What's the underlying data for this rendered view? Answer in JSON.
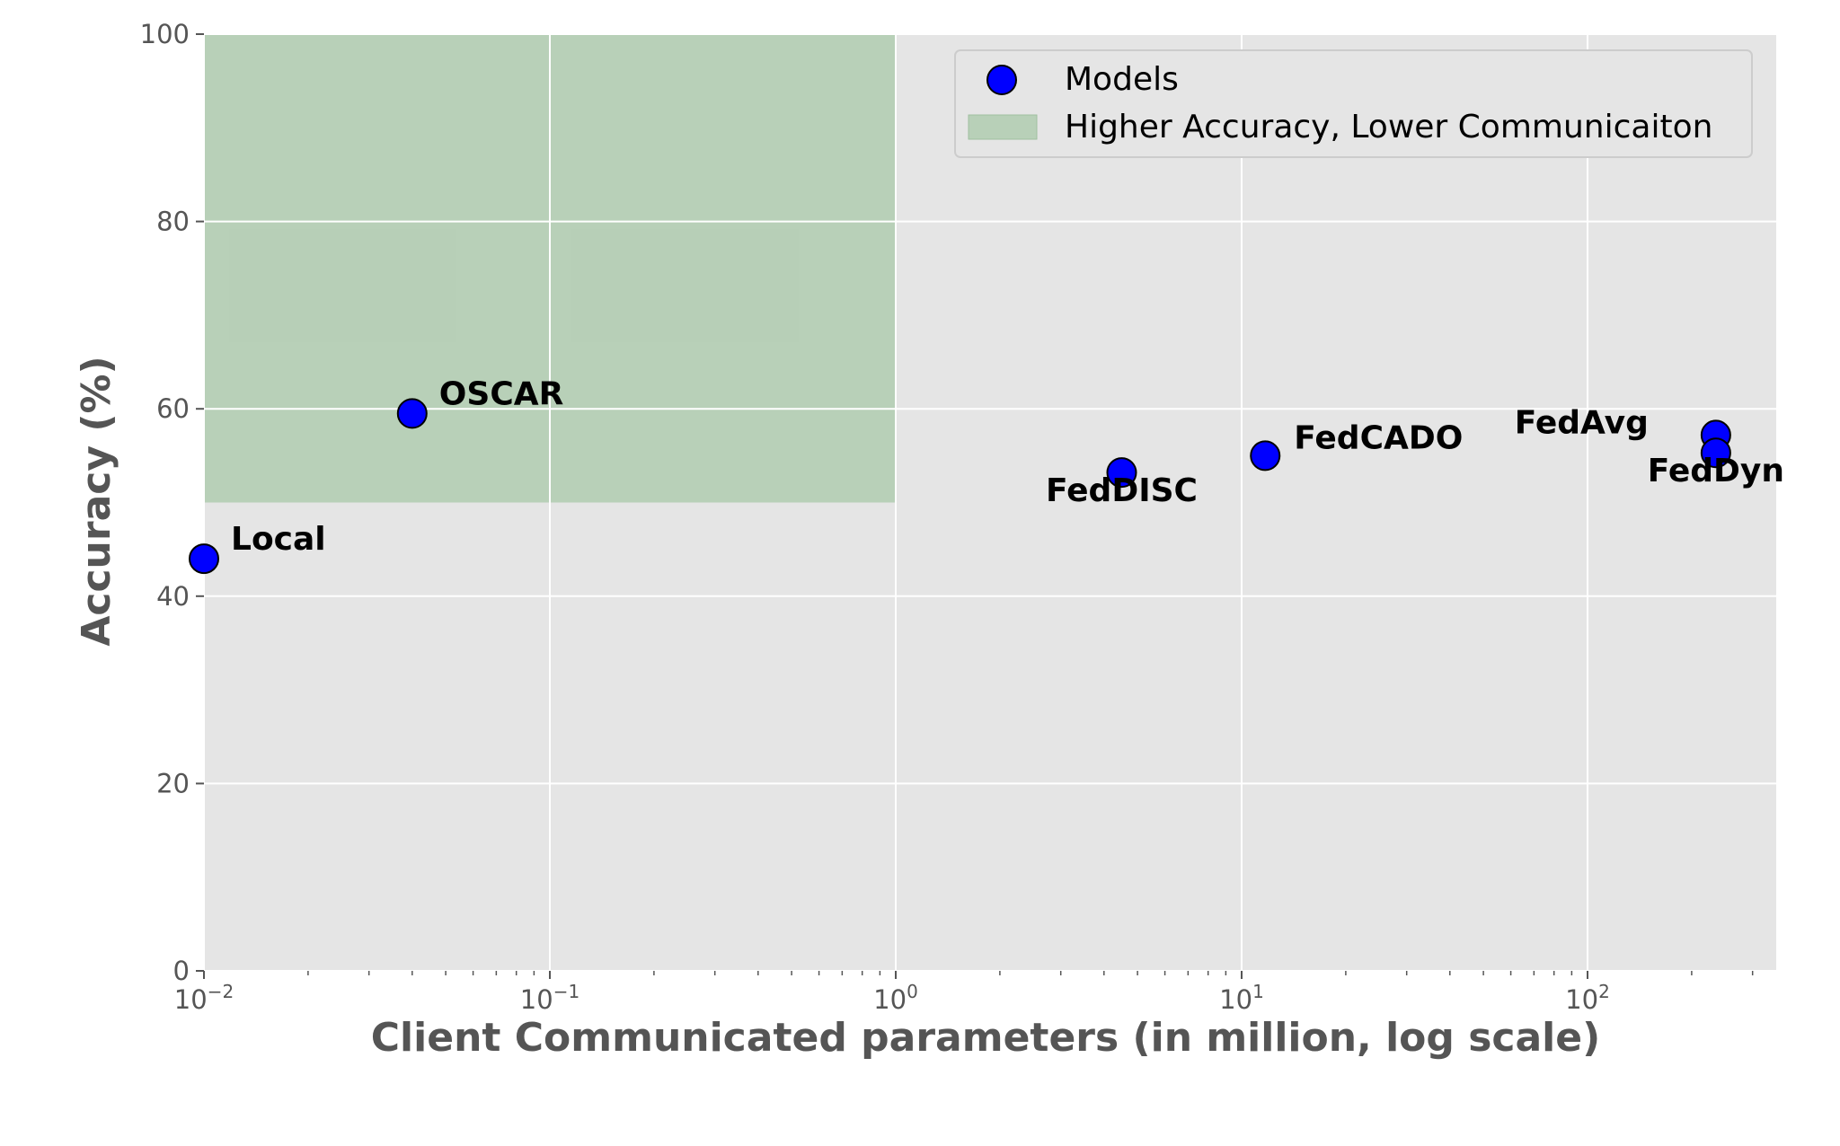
{
  "chart_data": {
    "type": "scatter",
    "xlabel": "Client Communicated parameters (in million, log scale)",
    "ylabel": "Accuracy (%)",
    "x_scale": "log",
    "xlim": [
      0.01,
      350
    ],
    "ylim": [
      0,
      100
    ],
    "x_ticks": [
      {
        "base": "10",
        "exp": "−2",
        "value": 0.01
      },
      {
        "base": "10",
        "exp": "−1",
        "value": 0.1
      },
      {
        "base": "10",
        "exp": "0",
        "value": 1
      },
      {
        "base": "10",
        "exp": "1",
        "value": 10
      },
      {
        "base": "10",
        "exp": "2",
        "value": 100
      }
    ],
    "y_ticks": [
      "0",
      "20",
      "40",
      "60",
      "80",
      "100"
    ],
    "grid": true,
    "legend_position": "top-right",
    "legend": [
      "Models",
      "Higher Accuracy, Lower Communicaiton"
    ],
    "points": [
      {
        "label": "Local",
        "x": 0.01,
        "y": 44
      },
      {
        "label": "OSCAR",
        "x": 0.04,
        "y": 59.5
      },
      {
        "label": "FedDISC",
        "x": 4.5,
        "y": 53.2
      },
      {
        "label": "FedCADO",
        "x": 11.7,
        "y": 55
      },
      {
        "label": "FedAvg",
        "x": 235,
        "y": 57.2
      },
      {
        "label": "FedDyn",
        "x": 235,
        "y": 55.3
      }
    ],
    "region": {
      "x": [
        0.01,
        1
      ],
      "y": [
        50,
        100
      ]
    },
    "colors": {
      "marker": "#0000ff",
      "region": "#a8c8a8",
      "background": "#e5e5e5",
      "grid": "#ffffff"
    }
  }
}
